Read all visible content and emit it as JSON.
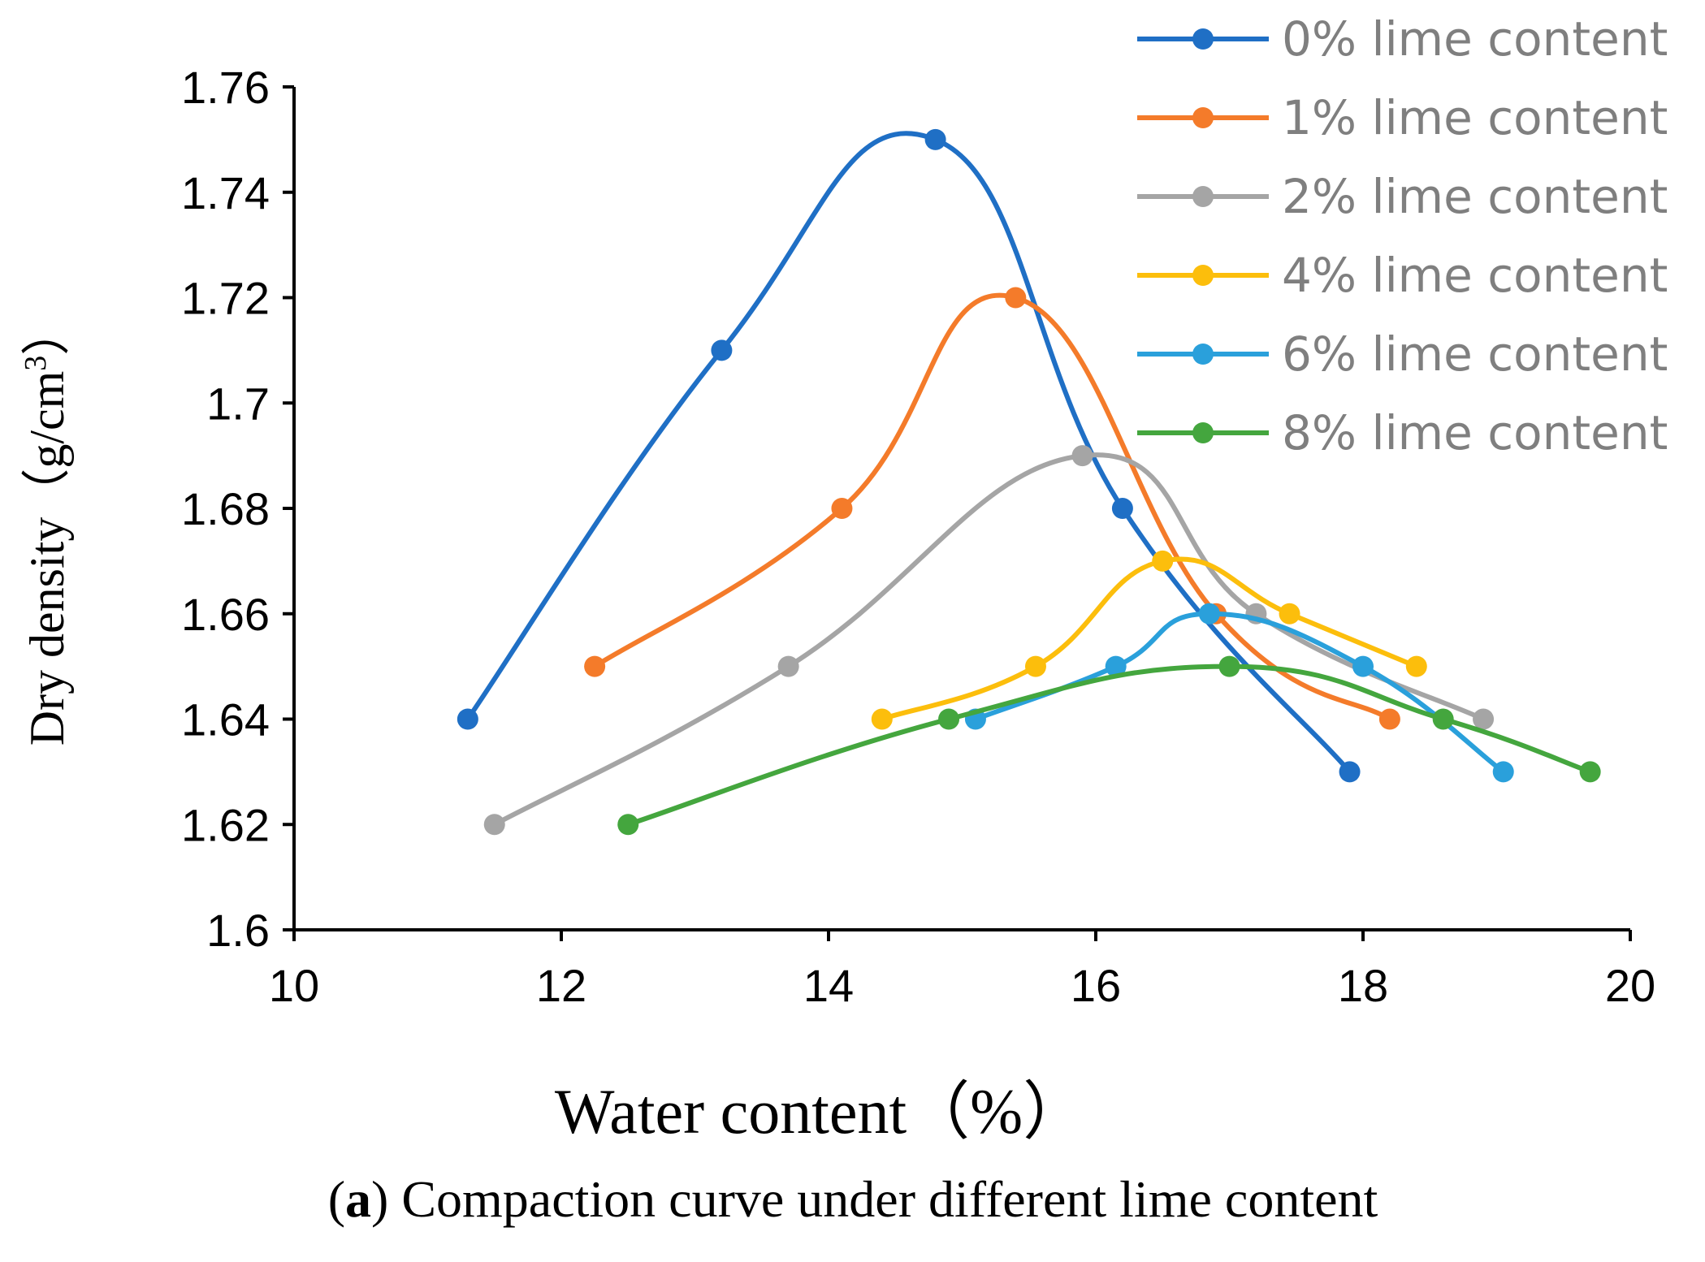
{
  "chart_data": {
    "type": "line",
    "smooth": true,
    "title": "",
    "xlabel": "Water content（%）",
    "ylabel_main": "Dry density（g/cm",
    "ylabel_sup": "3",
    "ylabel_end": "）",
    "xlim": [
      10,
      20
    ],
    "ylim": [
      1.6,
      1.76
    ],
    "xticks": [
      {
        "value": 10,
        "label": "10"
      },
      {
        "value": 12,
        "label": "12"
      },
      {
        "value": 14,
        "label": "14"
      },
      {
        "value": 16,
        "label": "16"
      },
      {
        "value": 18,
        "label": "18"
      },
      {
        "value": 20,
        "label": "20"
      }
    ],
    "yticks": [
      {
        "value": 1.6,
        "label": "1.6"
      },
      {
        "value": 1.62,
        "label": "1.62"
      },
      {
        "value": 1.64,
        "label": "1.64"
      },
      {
        "value": 1.66,
        "label": "1.66"
      },
      {
        "value": 1.68,
        "label": "1.68"
      },
      {
        "value": 1.7,
        "label": "1.7"
      },
      {
        "value": 1.72,
        "label": "1.72"
      },
      {
        "value": 1.74,
        "label": "1.74"
      },
      {
        "value": 1.76,
        "label": "1.76"
      }
    ],
    "legend_position": "top-right",
    "grid": false,
    "series": [
      {
        "name": "0% lime content",
        "color": "#1f6fc5",
        "x": [
          11.3,
          13.2,
          14.8,
          16.2,
          17.9
        ],
        "y": [
          1.64,
          1.71,
          1.75,
          1.68,
          1.63
        ]
      },
      {
        "name": "1% lime content",
        "color": "#f47b2a",
        "x": [
          12.25,
          14.1,
          15.4,
          16.9,
          18.2
        ],
        "y": [
          1.65,
          1.68,
          1.72,
          1.66,
          1.64
        ]
      },
      {
        "name": "2% lime content",
        "color": "#a5a5a5",
        "x": [
          11.5,
          13.7,
          15.9,
          17.2,
          18.9
        ],
        "y": [
          1.62,
          1.65,
          1.69,
          1.66,
          1.64
        ]
      },
      {
        "name": "4% lime content",
        "color": "#fcbe0c",
        "x": [
          14.4,
          15.55,
          16.5,
          17.45,
          18.4
        ],
        "y": [
          1.64,
          1.65,
          1.67,
          1.66,
          1.65
        ]
      },
      {
        "name": "6% lime content",
        "color": "#2aa0db",
        "x": [
          15.1,
          16.15,
          16.85,
          18.0,
          19.05
        ],
        "y": [
          1.64,
          1.65,
          1.66,
          1.65,
          1.63
        ]
      },
      {
        "name": "8% lime content",
        "color": "#44a63e",
        "x": [
          12.5,
          14.9,
          17.0,
          18.6,
          19.7
        ],
        "y": [
          1.62,
          1.64,
          1.65,
          1.64,
          1.63
        ]
      }
    ]
  },
  "caption": {
    "bold": "a",
    "text": ") Compaction curve under different lime content",
    "open": "("
  }
}
